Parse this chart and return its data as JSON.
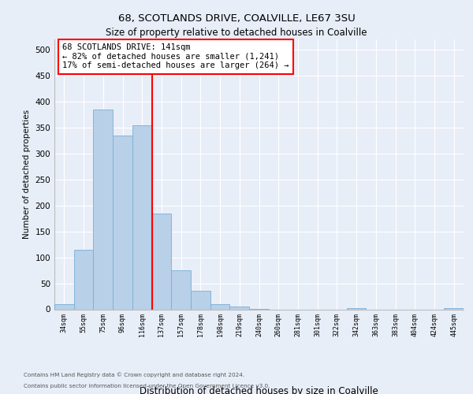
{
  "title1": "68, SCOTLANDS DRIVE, COALVILLE, LE67 3SU",
  "title2": "Size of property relative to detached houses in Coalville",
  "xlabel": "Distribution of detached houses by size in Coalville",
  "ylabel": "Number of detached properties",
  "categories": [
    "34sqm",
    "55sqm",
    "75sqm",
    "96sqm",
    "116sqm",
    "137sqm",
    "157sqm",
    "178sqm",
    "198sqm",
    "219sqm",
    "240sqm",
    "260sqm",
    "281sqm",
    "301sqm",
    "322sqm",
    "342sqm",
    "363sqm",
    "383sqm",
    "404sqm",
    "424sqm",
    "445sqm"
  ],
  "values": [
    10,
    115,
    385,
    335,
    355,
    185,
    75,
    35,
    10,
    5,
    1,
    0,
    0,
    0,
    0,
    2,
    0,
    0,
    0,
    0,
    2
  ],
  "bar_color": "#b8d0e8",
  "bar_edge_color": "#7aafd4",
  "vline_color": "red",
  "annotation_text": "68 SCOTLANDS DRIVE: 141sqm\n← 82% of detached houses are smaller (1,241)\n17% of semi-detached houses are larger (264) →",
  "annotation_box_color": "white",
  "annotation_box_edge": "red",
  "ylim": [
    0,
    520
  ],
  "yticks": [
    0,
    50,
    100,
    150,
    200,
    250,
    300,
    350,
    400,
    450,
    500
  ],
  "footer1": "Contains HM Land Registry data © Crown copyright and database right 2024.",
  "footer2": "Contains public sector information licensed under the Open Government Licence v3.0.",
  "bg_color": "#e8eef8",
  "plot_bg_color": "#e8eef8"
}
